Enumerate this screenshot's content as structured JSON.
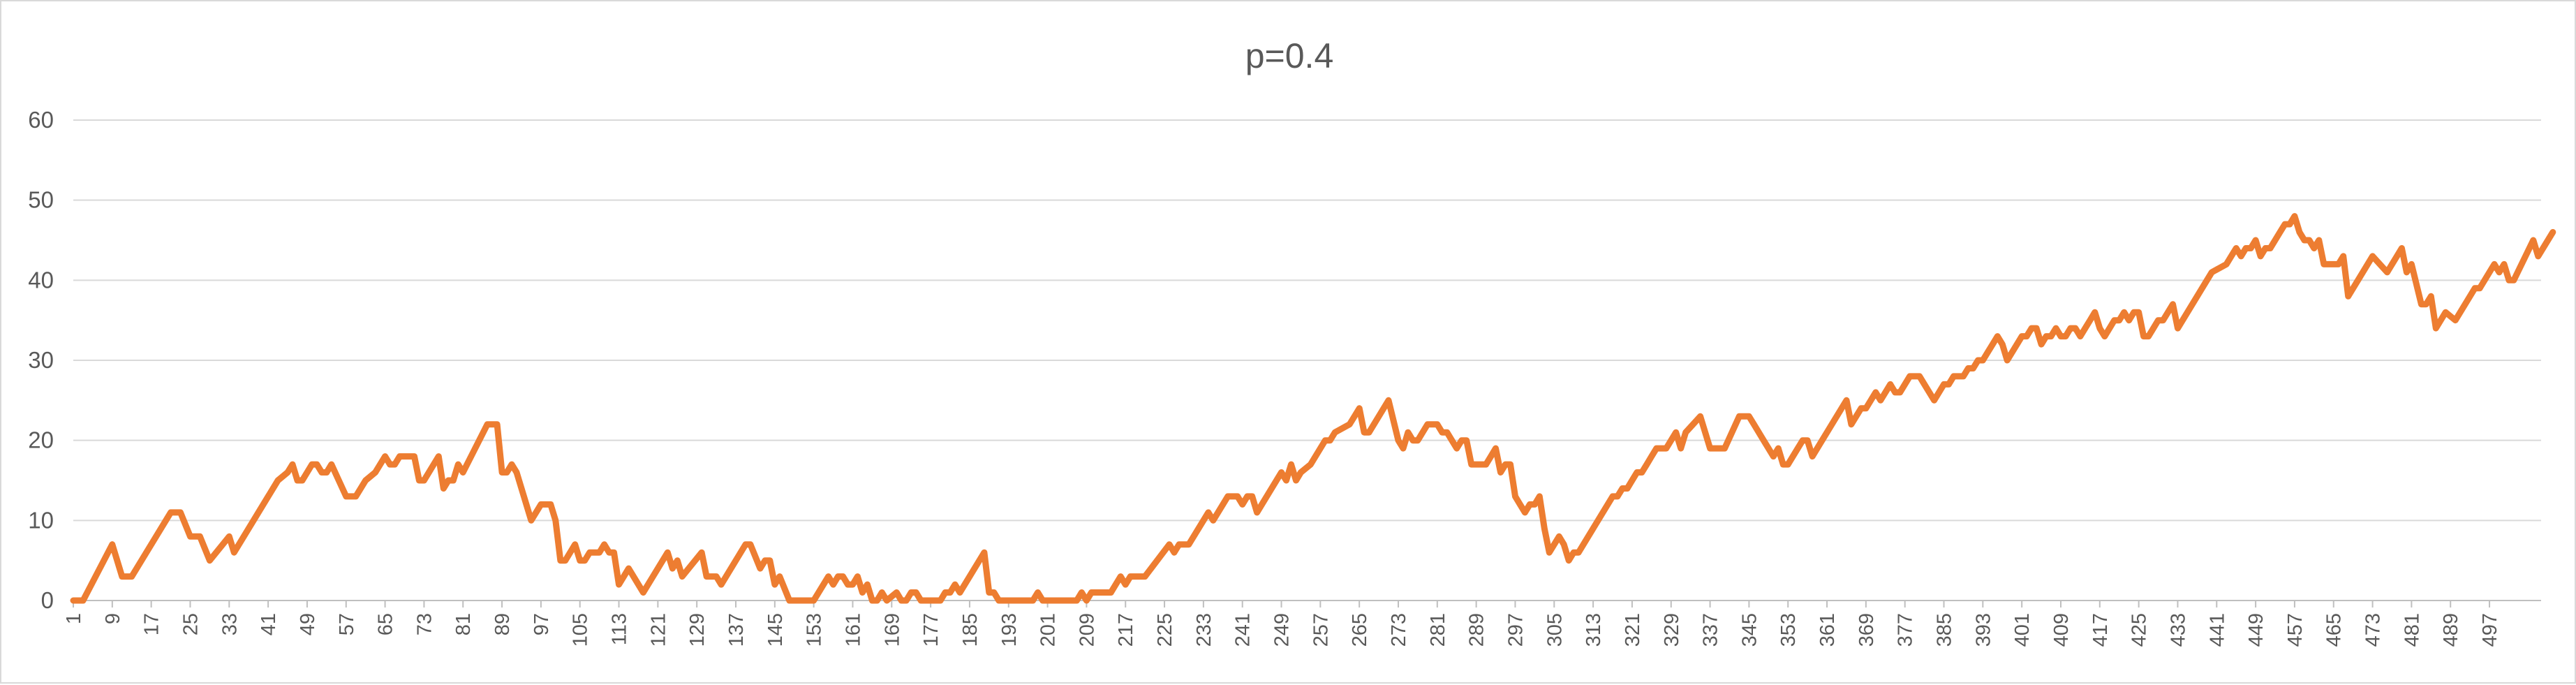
{
  "chart_data": {
    "type": "line",
    "title": "p=0.4",
    "xlabel": "",
    "ylabel": "",
    "xlim": [
      1,
      500
    ],
    "ylim": [
      0,
      60
    ],
    "yticks": [
      0,
      10,
      20,
      30,
      40,
      50,
      60
    ],
    "xtick_step": 8,
    "grid": true,
    "legend": "none",
    "series": [
      {
        "color": "#ED7D31",
        "anchors": [
          [
            1,
            0
          ],
          [
            3,
            0
          ],
          [
            9,
            7
          ],
          [
            11,
            3
          ],
          [
            13,
            3
          ],
          [
            21,
            11
          ],
          [
            23,
            11
          ],
          [
            25,
            8
          ],
          [
            27,
            8
          ],
          [
            29,
            5
          ],
          [
            33,
            8
          ],
          [
            34,
            6
          ],
          [
            43,
            15
          ],
          [
            45,
            16
          ],
          [
            46,
            17
          ],
          [
            47,
            15
          ],
          [
            48,
            15
          ],
          [
            50,
            17
          ],
          [
            51,
            17
          ],
          [
            52,
            16
          ],
          [
            53,
            16
          ],
          [
            54,
            17
          ],
          [
            57,
            13
          ],
          [
            59,
            13
          ],
          [
            61,
            15
          ],
          [
            63,
            16
          ],
          [
            65,
            18
          ],
          [
            66,
            17
          ],
          [
            67,
            17
          ],
          [
            68,
            18
          ],
          [
            71,
            18
          ],
          [
            72,
            15
          ],
          [
            73,
            15
          ],
          [
            76,
            18
          ],
          [
            77,
            14
          ],
          [
            78,
            15
          ],
          [
            79,
            15
          ],
          [
            80,
            17
          ],
          [
            81,
            16
          ],
          [
            86,
            22
          ],
          [
            88,
            22
          ],
          [
            89,
            16
          ],
          [
            90,
            16
          ],
          [
            91,
            17
          ],
          [
            92,
            16
          ],
          [
            95,
            10
          ],
          [
            97,
            12
          ],
          [
            99,
            12
          ],
          [
            100,
            10
          ],
          [
            101,
            5
          ],
          [
            102,
            5
          ],
          [
            104,
            7
          ],
          [
            105,
            5
          ],
          [
            106,
            5
          ],
          [
            107,
            6
          ],
          [
            109,
            6
          ],
          [
            110,
            7
          ],
          [
            111,
            6
          ],
          [
            112,
            6
          ],
          [
            113,
            2
          ],
          [
            115,
            4
          ],
          [
            118,
            1
          ],
          [
            123,
            6
          ],
          [
            124,
            4
          ],
          [
            125,
            5
          ],
          [
            126,
            3
          ],
          [
            130,
            6
          ],
          [
            131,
            3
          ],
          [
            133,
            3
          ],
          [
            134,
            2
          ],
          [
            139,
            7
          ],
          [
            140,
            7
          ],
          [
            142,
            4
          ],
          [
            143,
            5
          ],
          [
            144,
            5
          ],
          [
            145,
            2
          ],
          [
            146,
            3
          ],
          [
            148,
            0
          ],
          [
            153,
            0
          ],
          [
            156,
            3
          ],
          [
            157,
            2
          ],
          [
            158,
            3
          ],
          [
            159,
            3
          ],
          [
            160,
            2
          ],
          [
            161,
            2
          ],
          [
            162,
            3
          ],
          [
            163,
            1
          ],
          [
            164,
            2
          ],
          [
            165,
            0
          ],
          [
            166,
            0
          ],
          [
            167,
            1
          ],
          [
            168,
            0
          ],
          [
            170,
            1
          ],
          [
            171,
            0
          ],
          [
            172,
            0
          ],
          [
            173,
            1
          ],
          [
            174,
            1
          ],
          [
            175,
            0
          ],
          [
            179,
            0
          ],
          [
            180,
            1
          ],
          [
            181,
            1
          ],
          [
            182,
            2
          ],
          [
            183,
            1
          ],
          [
            188,
            6
          ],
          [
            189,
            1
          ],
          [
            190,
            1
          ],
          [
            191,
            0
          ],
          [
            198,
            0
          ],
          [
            199,
            1
          ],
          [
            200,
            0
          ],
          [
            207,
            0
          ],
          [
            208,
            1
          ],
          [
            209,
            0
          ],
          [
            210,
            1
          ],
          [
            214,
            1
          ],
          [
            216,
            3
          ],
          [
            217,
            2
          ],
          [
            218,
            3
          ],
          [
            221,
            3
          ],
          [
            226,
            7
          ],
          [
            227,
            6
          ],
          [
            228,
            7
          ],
          [
            230,
            7
          ],
          [
            234,
            11
          ],
          [
            235,
            10
          ],
          [
            238,
            13
          ],
          [
            240,
            13
          ],
          [
            241,
            12
          ],
          [
            242,
            13
          ],
          [
            243,
            13
          ],
          [
            244,
            11
          ],
          [
            249,
            16
          ],
          [
            250,
            15
          ],
          [
            251,
            17
          ],
          [
            252,
            15
          ],
          [
            253,
            16
          ],
          [
            255,
            17
          ],
          [
            258,
            20
          ],
          [
            259,
            20
          ],
          [
            260,
            21
          ],
          [
            263,
            22
          ],
          [
            264,
            23
          ],
          [
            265,
            24
          ],
          [
            266,
            21
          ],
          [
            267,
            21
          ],
          [
            271,
            25
          ],
          [
            273,
            20
          ],
          [
            274,
            19
          ],
          [
            275,
            21
          ],
          [
            276,
            20
          ],
          [
            277,
            20
          ],
          [
            278,
            21
          ],
          [
            279,
            22
          ],
          [
            281,
            22
          ],
          [
            282,
            21
          ],
          [
            283,
            21
          ],
          [
            285,
            19
          ],
          [
            286,
            20
          ],
          [
            287,
            20
          ],
          [
            288,
            17
          ],
          [
            289,
            17
          ],
          [
            291,
            17
          ],
          [
            292,
            18
          ],
          [
            293,
            19
          ],
          [
            294,
            16
          ],
          [
            295,
            17
          ],
          [
            296,
            17
          ],
          [
            297,
            13
          ],
          [
            298,
            12
          ],
          [
            299,
            11
          ],
          [
            300,
            12
          ],
          [
            301,
            12
          ],
          [
            302,
            13
          ],
          [
            303,
            9
          ],
          [
            304,
            6
          ],
          [
            306,
            8
          ],
          [
            307,
            7
          ],
          [
            308,
            5
          ],
          [
            309,
            6
          ],
          [
            310,
            6
          ],
          [
            317,
            13
          ],
          [
            318,
            13
          ],
          [
            319,
            14
          ],
          [
            320,
            14
          ],
          [
            321,
            15
          ],
          [
            322,
            16
          ],
          [
            323,
            16
          ],
          [
            324,
            17
          ],
          [
            325,
            18
          ],
          [
            326,
            19
          ],
          [
            328,
            19
          ],
          [
            330,
            21
          ],
          [
            331,
            19
          ],
          [
            332,
            21
          ],
          [
            335,
            23
          ],
          [
            337,
            19
          ],
          [
            340,
            19
          ],
          [
            343,
            23
          ],
          [
            345,
            23
          ],
          [
            346,
            22
          ],
          [
            348,
            20
          ],
          [
            349,
            19
          ],
          [
            350,
            18
          ],
          [
            351,
            19
          ],
          [
            352,
            17
          ],
          [
            353,
            17
          ],
          [
            355,
            19
          ],
          [
            356,
            20
          ],
          [
            357,
            20
          ],
          [
            358,
            18
          ],
          [
            365,
            25
          ],
          [
            366,
            22
          ],
          [
            368,
            24
          ],
          [
            369,
            24
          ],
          [
            371,
            26
          ],
          [
            372,
            25
          ],
          [
            374,
            27
          ],
          [
            375,
            26
          ],
          [
            376,
            26
          ],
          [
            377,
            27
          ],
          [
            378,
            28
          ],
          [
            380,
            28
          ],
          [
            381,
            27
          ],
          [
            383,
            25
          ],
          [
            385,
            27
          ],
          [
            386,
            27
          ],
          [
            387,
            28
          ],
          [
            388,
            28
          ],
          [
            389,
            28
          ],
          [
            390,
            29
          ],
          [
            391,
            29
          ],
          [
            392,
            30
          ],
          [
            393,
            30
          ],
          [
            394,
            31
          ],
          [
            395,
            32
          ],
          [
            396,
            33
          ],
          [
            397,
            32
          ],
          [
            398,
            30
          ],
          [
            400,
            32
          ],
          [
            401,
            33
          ],
          [
            402,
            33
          ],
          [
            403,
            34
          ],
          [
            404,
            34
          ],
          [
            405,
            32
          ],
          [
            406,
            33
          ],
          [
            407,
            33
          ],
          [
            408,
            34
          ],
          [
            409,
            33
          ],
          [
            410,
            33
          ],
          [
            411,
            34
          ],
          [
            412,
            34
          ],
          [
            413,
            33
          ],
          [
            414,
            34
          ],
          [
            415,
            35
          ],
          [
            416,
            36
          ],
          [
            417,
            34
          ],
          [
            418,
            33
          ],
          [
            419,
            34
          ],
          [
            420,
            35
          ],
          [
            421,
            35
          ],
          [
            422,
            36
          ],
          [
            423,
            35
          ],
          [
            424,
            36
          ],
          [
            425,
            36
          ],
          [
            426,
            33
          ],
          [
            427,
            33
          ],
          [
            428,
            34
          ],
          [
            429,
            35
          ],
          [
            430,
            35
          ],
          [
            431,
            36
          ],
          [
            432,
            37
          ],
          [
            433,
            34
          ],
          [
            440,
            41
          ],
          [
            443,
            42
          ],
          [
            444,
            43
          ],
          [
            445,
            44
          ],
          [
            446,
            43
          ],
          [
            447,
            44
          ],
          [
            448,
            44
          ],
          [
            449,
            45
          ],
          [
            450,
            43
          ],
          [
            451,
            44
          ],
          [
            452,
            44
          ],
          [
            453,
            45
          ],
          [
            454,
            46
          ],
          [
            455,
            47
          ],
          [
            456,
            47
          ],
          [
            457,
            48
          ],
          [
            458,
            46
          ],
          [
            459,
            45
          ],
          [
            460,
            45
          ],
          [
            461,
            44
          ],
          [
            462,
            45
          ],
          [
            463,
            42
          ],
          [
            466,
            42
          ],
          [
            467,
            43
          ],
          [
            468,
            38
          ],
          [
            473,
            43
          ],
          [
            476,
            41
          ],
          [
            477,
            42
          ],
          [
            479,
            44
          ],
          [
            480,
            41
          ],
          [
            481,
            42
          ],
          [
            483,
            37
          ],
          [
            484,
            37
          ],
          [
            485,
            38
          ],
          [
            486,
            34
          ],
          [
            488,
            36
          ],
          [
            490,
            35
          ],
          [
            494,
            39
          ],
          [
            495,
            39
          ],
          [
            498,
            42
          ],
          [
            499,
            41
          ],
          [
            500,
            42
          ],
          [
            501,
            40
          ],
          [
            502,
            40
          ],
          [
            506,
            45
          ],
          [
            507,
            43
          ],
          [
            510,
            46
          ]
        ]
      }
    ]
  }
}
